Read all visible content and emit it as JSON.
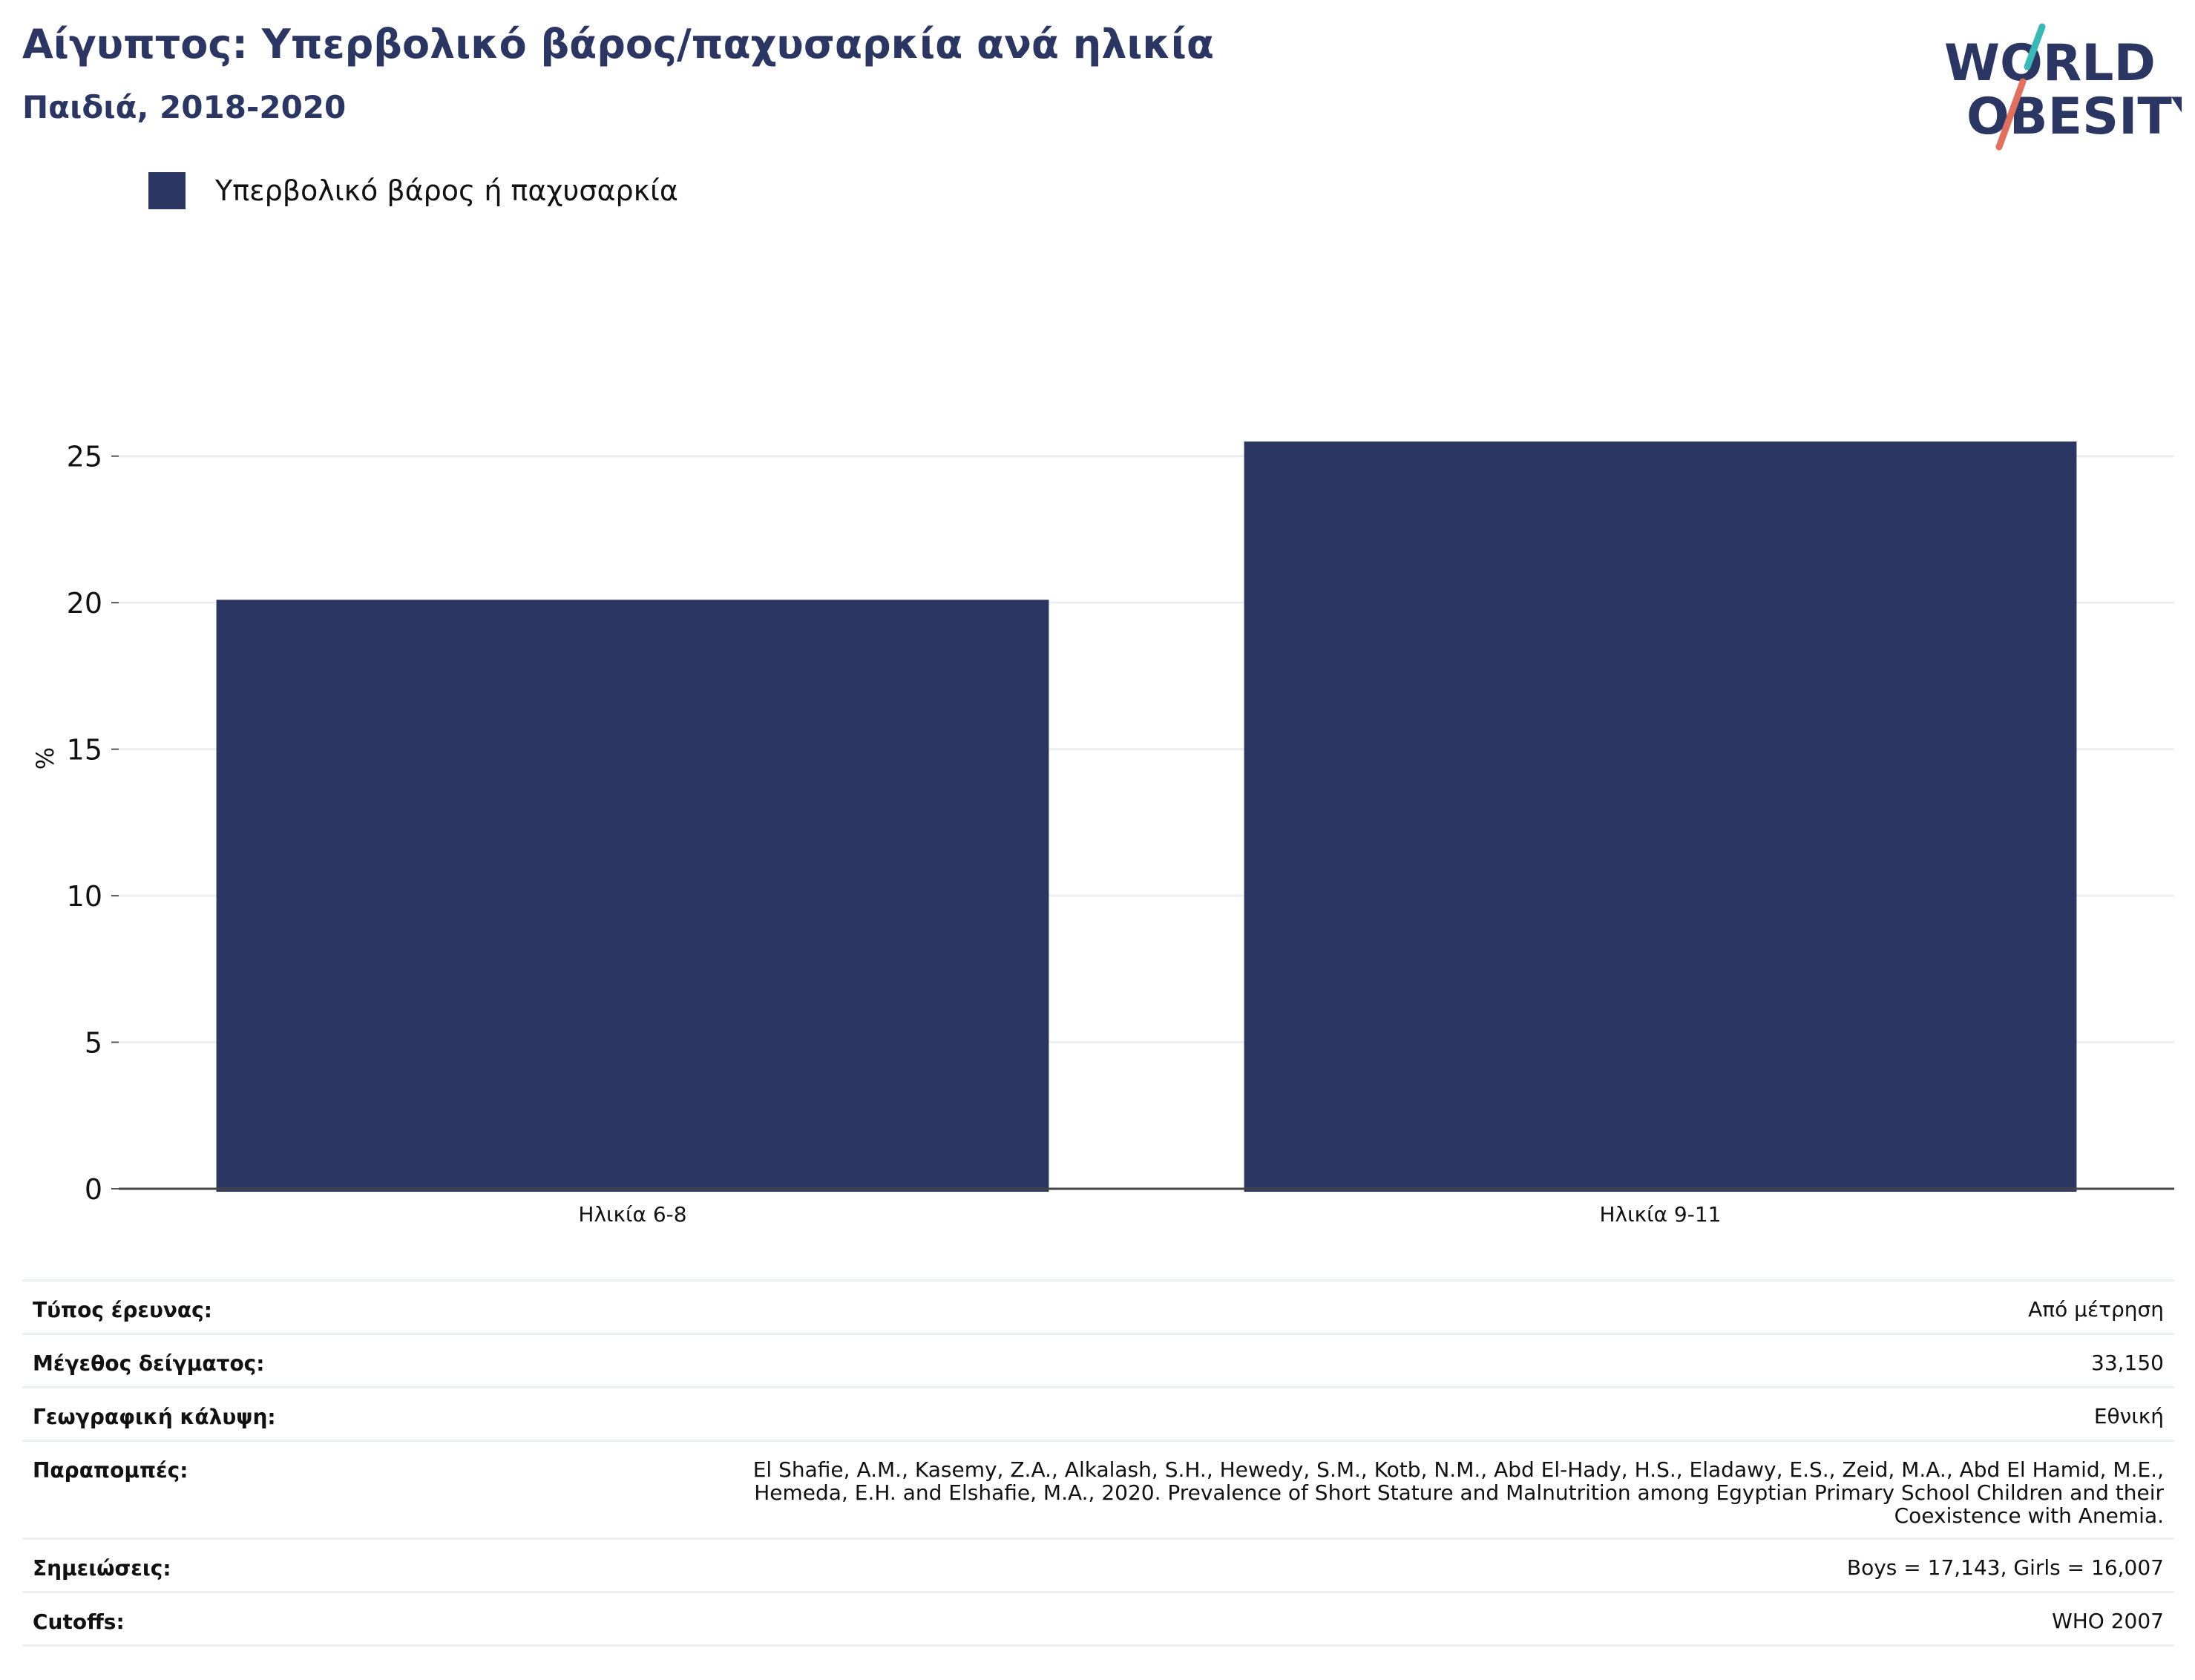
{
  "header": {
    "title": "Αίγυπτος: Υπερβολικό βάρος/παχυσαρκία ανά ηλικία",
    "subtitle": "Παιδιά, 2018-2020"
  },
  "logo": {
    "line1": "WORLD",
    "line2": "OBESITY",
    "colors": {
      "text": "#2b3663",
      "slash_top": "#3bb8b8",
      "slash_bottom": "#e0705f"
    }
  },
  "legend": {
    "label": "Υπερβολικό βάρος ή παχυσαρκία",
    "color": "#2b3663"
  },
  "chart_data": {
    "type": "bar",
    "categories": [
      "Ηλικία 6-8",
      "Ηλικία 9-11"
    ],
    "series": [
      {
        "name": "Υπερβολικό βάρος ή παχυσαρκία",
        "values": [
          20.1,
          25.5
        ],
        "color": "#2b3663"
      }
    ],
    "ylabel": "%",
    "xlabel": "",
    "ylim": [
      0,
      27.5
    ],
    "yticks": [
      0,
      5,
      10,
      15,
      20,
      25
    ],
    "grid": true,
    "legend_position": "top-left"
  },
  "meta": {
    "rows": [
      {
        "key": "Τύπος έρευνας:",
        "value": [
          "Από μέτρηση"
        ]
      },
      {
        "key": "Μέγεθος δείγματος:",
        "value": [
          "33,150"
        ]
      },
      {
        "key": "Γεωγραφική κάλυψη:",
        "value": [
          "Εθνική"
        ]
      },
      {
        "key": "Παραπομπές:",
        "value": [
          "El Shafie, A.M., Kasemy, Z.A., Alkalash, S.H., Hewedy, S.M., Kotb, N.M., Abd El-Hady, H.S., Eladawy, E.S., Zeid, M.A., Abd El Hamid, M.E.,",
          "Hemeda, E.H. and Elshafie, M.A., 2020. Prevalence of Short Stature and Malnutrition among Egyptian Primary School Children and their",
          "Coexistence with Anemia."
        ]
      },
      {
        "key": "Σημειώσεις:",
        "value": [
          "Boys = 17,143, Girls = 16,007"
        ]
      },
      {
        "key": "Cutoffs:",
        "value": [
          "WHO 2007"
        ]
      }
    ]
  }
}
